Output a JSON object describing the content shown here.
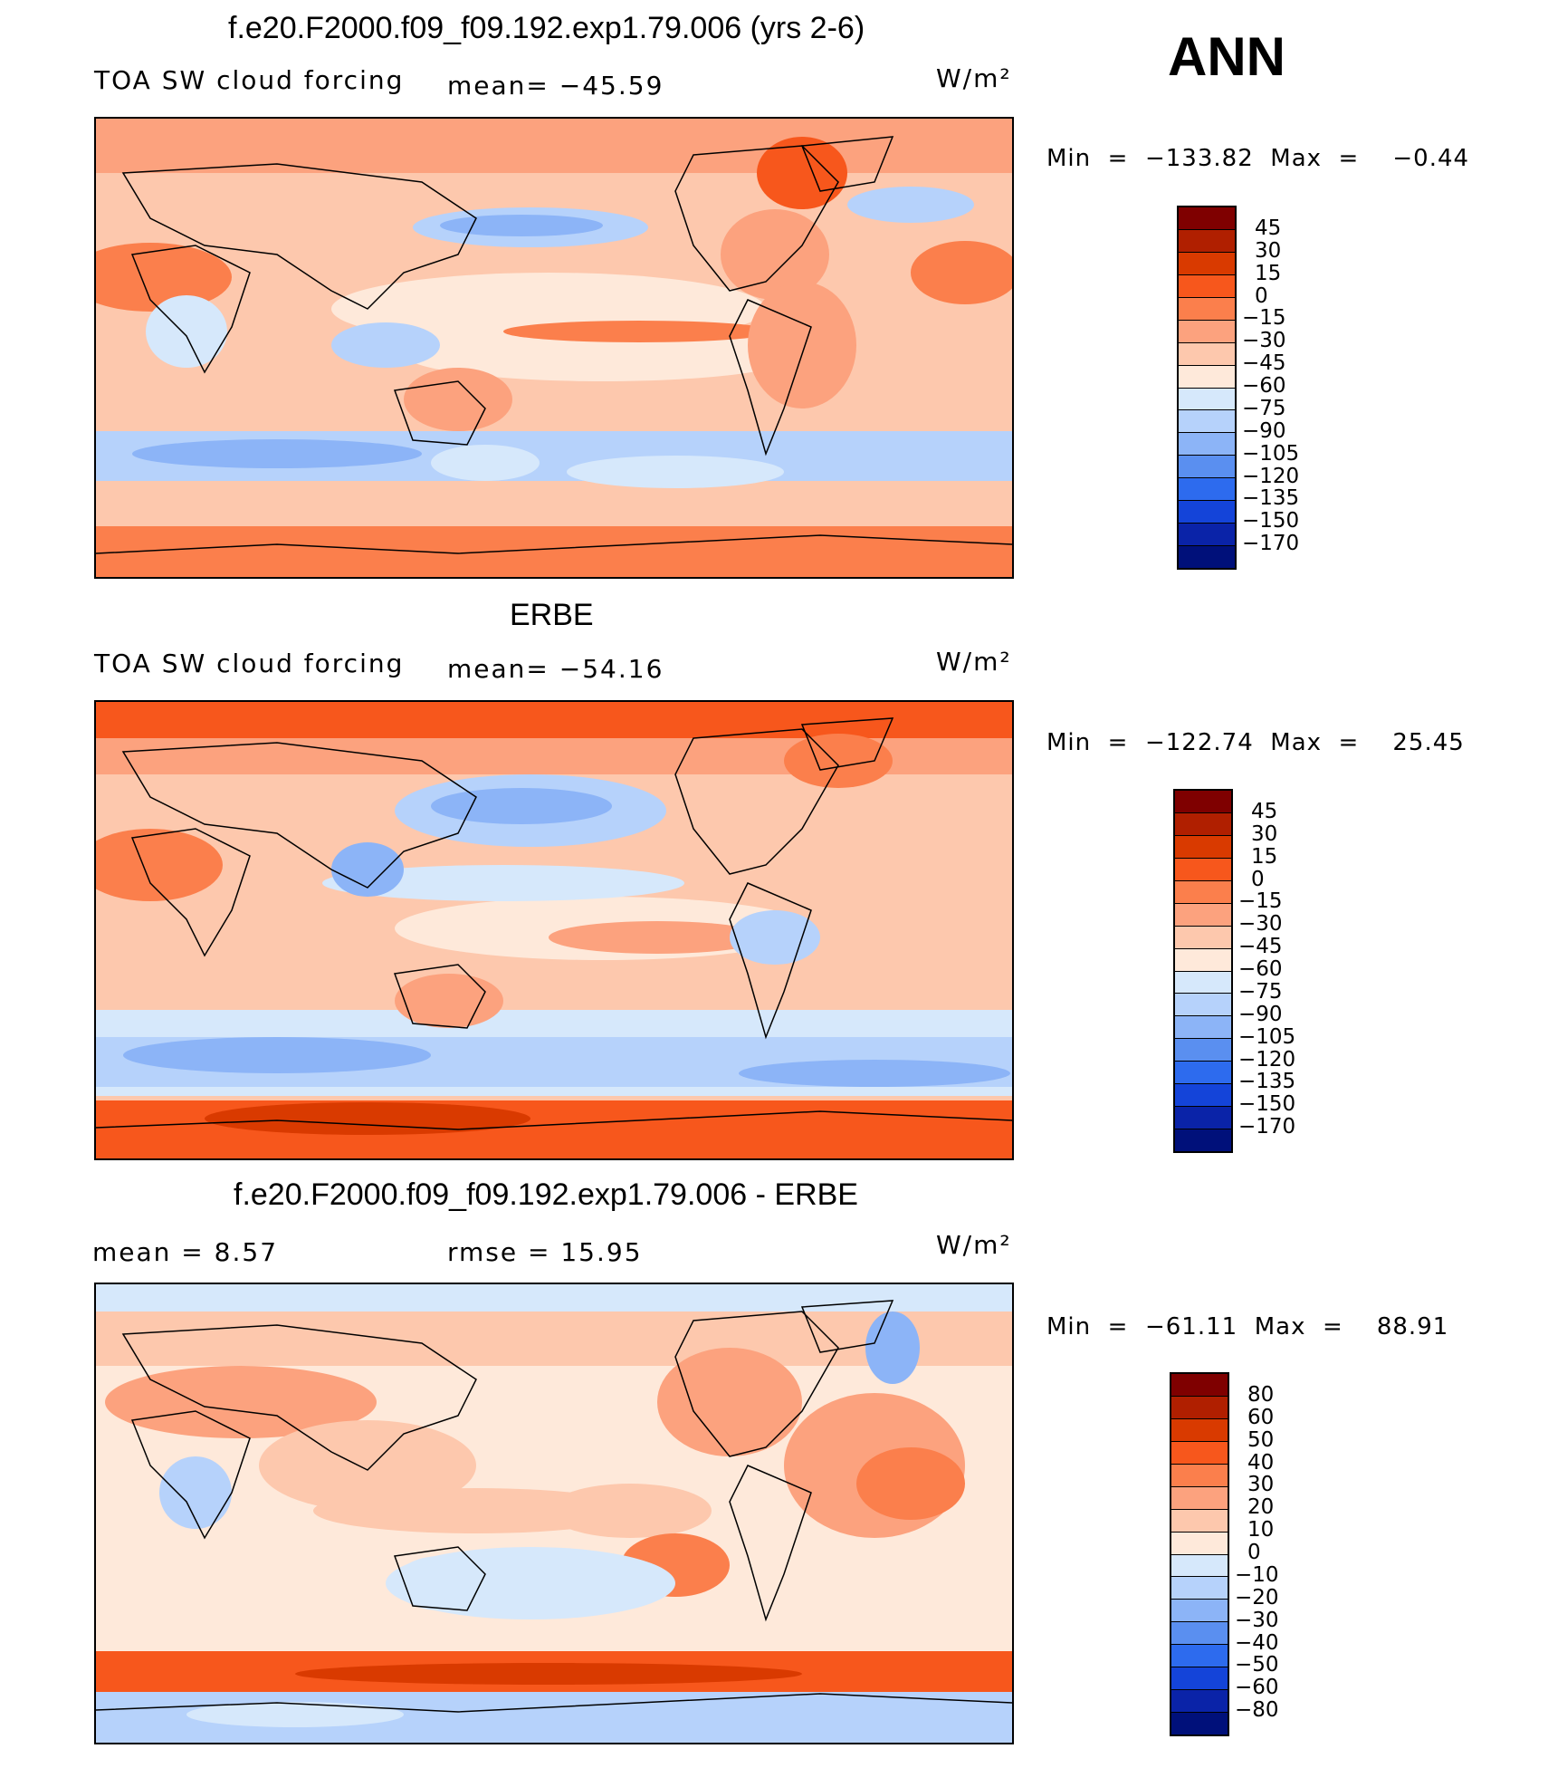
{
  "header": {
    "ann_label": "ANN"
  },
  "panels": [
    {
      "title": "f.e20.F2000.f09_f09.192.exp1.79.006 (yrs 2-6)",
      "left_label": "TOA SW cloud forcing",
      "stat_label": "mean= −45.59",
      "units": "W/m²",
      "min_max": "Min  =  −133.82  Max  =    −0.44",
      "colorbar_labels": [
        "45",
        "30",
        "15",
        "0",
        "−15",
        "−30",
        "−45",
        "−60",
        "−75",
        "−90",
        "−105",
        "−120",
        "−135",
        "−150",
        "−170"
      ]
    },
    {
      "title": "ERBE",
      "left_label": "TOA SW cloud forcing",
      "stat_label": "mean= −54.16",
      "units": "W/m²",
      "min_max": "Min  =  −122.74  Max  =    25.45",
      "colorbar_labels": [
        "45",
        "30",
        "15",
        "0",
        "−15",
        "−30",
        "−45",
        "−60",
        "−75",
        "−90",
        "−105",
        "−120",
        "−135",
        "−150",
        "−170"
      ]
    },
    {
      "title": "f.e20.F2000.f09_f09.192.exp1.79.006 - ERBE",
      "left_label": "mean  =     8.57",
      "stat_label": "rmse  =    15.95",
      "units": "W/m²",
      "min_max": "Min  =  −61.11  Max  =    88.91",
      "colorbar_labels": [
        "80",
        "60",
        "50",
        "40",
        "30",
        "20",
        "10",
        "0",
        "−10",
        "−20",
        "−30",
        "−40",
        "−50",
        "−60",
        "−80"
      ]
    }
  ],
  "colors": {
    "colorbar_segments": [
      "#7f0000",
      "#b01f00",
      "#d93a00",
      "#f7571c",
      "#fb7f4c",
      "#fca27e",
      "#fdc8ad",
      "#fee9da",
      "#d6e8fb",
      "#b6d2fb",
      "#8cb4f7",
      "#5a8ff0",
      "#2d6bee",
      "#1444d9",
      "#0a23a8",
      "#00107a"
    ]
  }
}
